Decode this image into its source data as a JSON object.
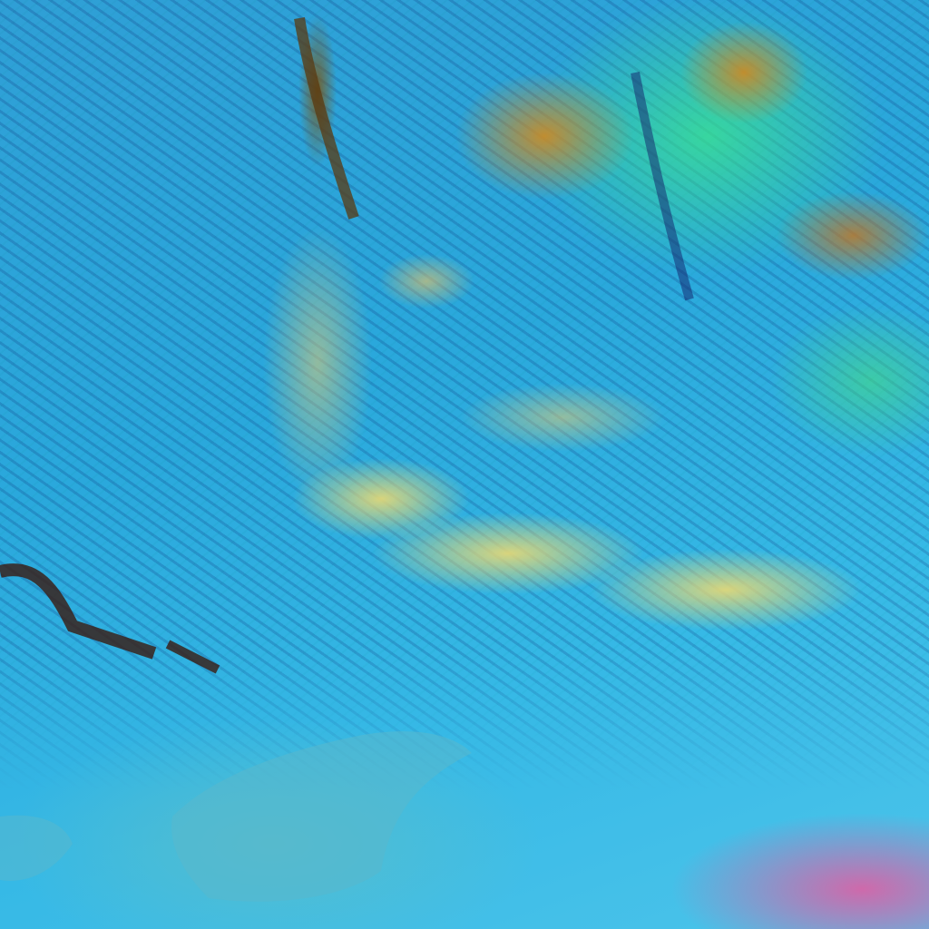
{
  "image": {
    "palette": {
      "ocean": "#2aa8dc",
      "cloud_band": "#e1d778",
      "convective_core": "#c88c28",
      "vegetation_green": "#3ce68c",
      "land_pink": "#e65aa0",
      "streak_dark": "#14206a"
    }
  }
}
